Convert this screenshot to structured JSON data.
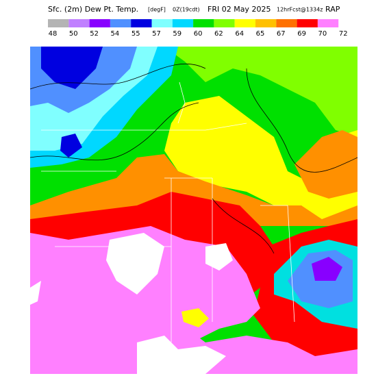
{
  "header": {
    "title": "Sfc. (2m) Dew Pt. Temp.",
    "units": "[degF]",
    "valid": "0Z(19cdt)",
    "date": "FRI 02 May 2025",
    "forecast": "12hrFcst@1334z",
    "model": "RAP"
  },
  "legend": {
    "labels": [
      "48",
      "50",
      "52",
      "54",
      "55",
      "57",
      "59",
      "60",
      "62",
      "64",
      "65",
      "67",
      "69",
      "70",
      "72"
    ]
  }
}
